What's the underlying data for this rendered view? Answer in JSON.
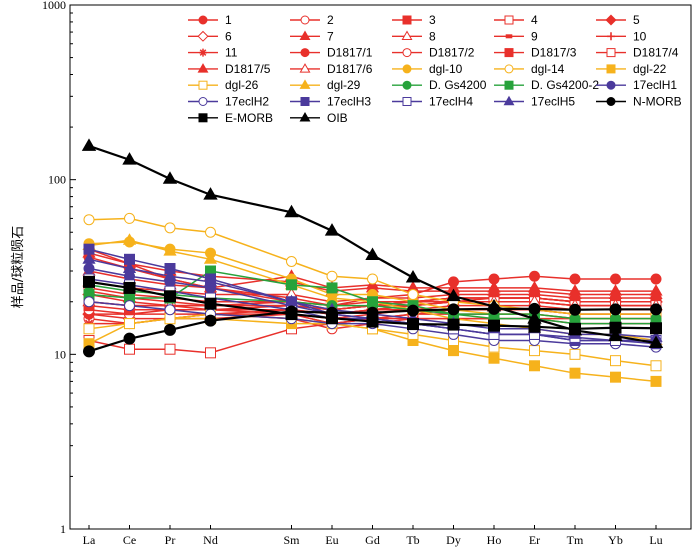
{
  "chart_data": {
    "type": "line",
    "title": "",
    "ylabel": "样品/球粒陨石",
    "xlabel": "",
    "yscale": "log",
    "ylim": [
      1,
      1000
    ],
    "ytick_labels": [
      "1",
      "10",
      "100",
      "1000"
    ],
    "categories": [
      "La",
      "Ce",
      "Pr",
      "Nd",
      "Sm",
      "Eu",
      "Gd",
      "Tb",
      "Dy",
      "Ho",
      "Er",
      "Tm",
      "Yb",
      "Lu"
    ],
    "category_slots": [
      0,
      1,
      2,
      3,
      5,
      6,
      7,
      8,
      9,
      10,
      11,
      12,
      13,
      14
    ],
    "legend_position": "top-right",
    "grid": false,
    "series": [
      {
        "name": "1",
        "color": "#e8302b",
        "marker": "circle",
        "fill": true,
        "values": [
          36,
          31,
          27,
          24,
          21,
          19,
          21,
          22,
          26,
          27,
          28,
          27,
          27,
          27
        ]
      },
      {
        "name": "2",
        "color": "#e8302b",
        "marker": "circle",
        "fill": false,
        "values": [
          16,
          15,
          16,
          17,
          16,
          14,
          15,
          16,
          16,
          16,
          16,
          15,
          15,
          15
        ]
      },
      {
        "name": "3",
        "color": "#e8302b",
        "marker": "square",
        "fill": true,
        "values": [
          40,
          33,
          27,
          24,
          20,
          17,
          18,
          18,
          18,
          18,
          18,
          17,
          17,
          17
        ]
      },
      {
        "name": "4",
        "color": "#e8302b",
        "marker": "square",
        "fill": false,
        "values": [
          12,
          10.7,
          10.7,
          10.2,
          14,
          15,
          16,
          17,
          18,
          18,
          18,
          17,
          17,
          17
        ]
      },
      {
        "name": "5",
        "color": "#e8302b",
        "marker": "diamond",
        "fill": true,
        "values": [
          22,
          20,
          19,
          18,
          18,
          17,
          18,
          19,
          20,
          21,
          21,
          20,
          20,
          20
        ]
      },
      {
        "name": "6",
        "color": "#e8302b",
        "marker": "diamond",
        "fill": false,
        "values": [
          17,
          16,
          16,
          16,
          17,
          16,
          17,
          18,
          19,
          19,
          19,
          18,
          18,
          18
        ]
      },
      {
        "name": "7",
        "color": "#e8302b",
        "marker": "triangle",
        "fill": true,
        "values": [
          30,
          27,
          25,
          24,
          28,
          24,
          25,
          24,
          24,
          24,
          24,
          23,
          23,
          23
        ]
      },
      {
        "name": "8",
        "color": "#e8302b",
        "marker": "triangle",
        "fill": false,
        "values": [
          26,
          24,
          23,
          22,
          22,
          20,
          21,
          21,
          22,
          22,
          22,
          21,
          21,
          21
        ]
      },
      {
        "name": "9",
        "color": "#e8302b",
        "marker": "dash",
        "fill": true,
        "values": [
          24,
          22,
          21,
          20,
          20,
          18,
          19,
          20,
          21,
          21,
          21,
          20,
          20,
          20
        ]
      },
      {
        "name": "10",
        "color": "#e8302b",
        "marker": "plus",
        "fill": true,
        "values": [
          20,
          19,
          19,
          19,
          20,
          19,
          20,
          20,
          21,
          21,
          21,
          20,
          20,
          20
        ]
      },
      {
        "name": "11",
        "color": "#e8302b",
        "marker": "star",
        "fill": true,
        "values": [
          15,
          15,
          16,
          17,
          18,
          17,
          18,
          19,
          20,
          20,
          20,
          19,
          19,
          19
        ]
      },
      {
        "name": "D1817/1",
        "color": "#e8302b",
        "marker": "circle",
        "fill": true,
        "values": [
          17,
          17,
          18,
          18,
          17,
          15,
          16,
          16,
          16,
          16,
          16,
          16,
          16,
          16
        ]
      },
      {
        "name": "D1817/2",
        "color": "#e8302b",
        "marker": "circle",
        "fill": false,
        "values": [
          18,
          17,
          17,
          17,
          17,
          15,
          16,
          17,
          17,
          17,
          17,
          16,
          16,
          16
        ]
      },
      {
        "name": "D1817/3",
        "color": "#e8302b",
        "marker": "square",
        "fill": true,
        "values": [
          19,
          18,
          18,
          18,
          19,
          18,
          19,
          20,
          21,
          21,
          21,
          20,
          20,
          20
        ]
      },
      {
        "name": "D1817/4",
        "color": "#e8302b",
        "marker": "square",
        "fill": false,
        "values": [
          23,
          21,
          20,
          19,
          19,
          18,
          19,
          20,
          20,
          20,
          20,
          19,
          19,
          19
        ]
      },
      {
        "name": "D1817/5",
        "color": "#e8302b",
        "marker": "triangle",
        "fill": true,
        "values": [
          38,
          33,
          30,
          28,
          26,
          23,
          24,
          23,
          23,
          23,
          23,
          22,
          22,
          22
        ]
      },
      {
        "name": "D1817/6",
        "color": "#e8302b",
        "marker": "triangle",
        "fill": false,
        "values": [
          20,
          19,
          19,
          19,
          19,
          18,
          19,
          19,
          20,
          20,
          20,
          19,
          19,
          19
        ]
      },
      {
        "name": "dgl-10",
        "color": "#f6b21c",
        "marker": "circle",
        "fill": true,
        "values": [
          43,
          44,
          40,
          38,
          27,
          22,
          22,
          20,
          18,
          17,
          17,
          16,
          16,
          16
        ]
      },
      {
        "name": "dgl-14",
        "color": "#f6b21c",
        "marker": "circle",
        "fill": false,
        "values": [
          59,
          60,
          53,
          50,
          34,
          28,
          27,
          22,
          20,
          19,
          18,
          17,
          17,
          17
        ]
      },
      {
        "name": "dgl-22",
        "color": "#f6b21c",
        "marker": "square",
        "fill": true,
        "values": [
          11.5,
          15,
          16,
          16,
          15,
          15,
          14,
          12,
          10.5,
          9.5,
          8.6,
          7.8,
          7.4,
          7
        ]
      },
      {
        "name": "dgl-26",
        "color": "#f6b21c",
        "marker": "square",
        "fill": false,
        "values": [
          14,
          15,
          16,
          17,
          16,
          15,
          14,
          13,
          12,
          11,
          10.5,
          10,
          9.2,
          8.6
        ]
      },
      {
        "name": "dgl-29",
        "color": "#f6b21c",
        "marker": "triangle",
        "fill": true,
        "values": [
          42,
          45,
          39,
          35,
          25,
          21,
          20,
          18,
          16,
          15,
          14,
          13,
          13,
          12
        ]
      },
      {
        "name": "D. Gs4200",
        "color": "#27a23b",
        "marker": "circle",
        "fill": true,
        "values": [
          25,
          23,
          22,
          21,
          20,
          19,
          19,
          18,
          17,
          17,
          17,
          16,
          16,
          16
        ]
      },
      {
        "name": "D. Gs4200-2",
        "color": "#27a23b",
        "marker": "square",
        "fill": true,
        "values": [
          22,
          21,
          21,
          30,
          25,
          24,
          20,
          19,
          17,
          16,
          16,
          15,
          15,
          15
        ]
      },
      {
        "name": "17eclH1",
        "color": "#4b3a9c",
        "marker": "circle",
        "fill": true,
        "values": [
          31,
          28,
          26,
          24,
          19,
          17,
          16,
          15,
          14,
          13,
          13,
          12,
          12,
          12
        ]
      },
      {
        "name": "17eclH2",
        "color": "#4b3a9c",
        "marker": "circle",
        "fill": false,
        "values": [
          20,
          19,
          18,
          17,
          16,
          15,
          15,
          14,
          13,
          12,
          12,
          11.5,
          11.5,
          11
        ]
      },
      {
        "name": "17eclH3",
        "color": "#4b3a9c",
        "marker": "square",
        "fill": true,
        "values": [
          40,
          35,
          31,
          27,
          20,
          17,
          16,
          15,
          14,
          13,
          13,
          12,
          12,
          11.5
        ]
      },
      {
        "name": "17eclH4",
        "color": "#4b3a9c",
        "marker": "square",
        "fill": false,
        "values": [
          27,
          25,
          23,
          21,
          18,
          16,
          16,
          15,
          14,
          13,
          13,
          12.5,
          12,
          12
        ]
      },
      {
        "name": "17eclH5",
        "color": "#4b3a9c",
        "marker": "triangle",
        "fill": true,
        "values": [
          35,
          31,
          28,
          26,
          20,
          18,
          17,
          16,
          15,
          14,
          14,
          13,
          13,
          12.5
        ]
      },
      {
        "name": "N-MORB",
        "color": "#000000",
        "marker": "circle",
        "fill": true,
        "values": [
          10.4,
          12.3,
          13.8,
          15.6,
          17.6,
          17.3,
          17.3,
          17.8,
          18.1,
          18.2,
          18.2,
          18.0,
          18.1,
          18.1
        ]
      },
      {
        "name": "E-MORB",
        "color": "#000000",
        "marker": "square",
        "fill": true,
        "values": [
          26,
          24,
          21.5,
          19.5,
          17.0,
          16.1,
          15.4,
          14.9,
          14.8,
          14.6,
          14.4,
          14.0,
          14.2,
          14.1
        ]
      },
      {
        "name": "OIB",
        "color": "#000000",
        "marker": "triangle",
        "fill": true,
        "values": [
          156,
          130,
          101,
          82,
          65,
          51,
          37,
          27.5,
          21.5,
          18.8,
          16.0,
          13.7,
          12.7,
          11.6
        ]
      }
    ]
  }
}
